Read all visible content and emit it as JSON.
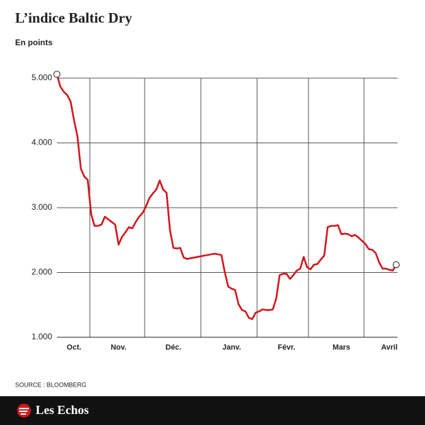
{
  "chart_data": {
    "type": "line",
    "title": "L’indice Baltic Dry",
    "subtitle": "En points",
    "source": "SOURCE : BLOOMBERG",
    "categories": [
      null,
      null,
      null,
      null,
      null,
      "Oct.",
      null,
      null,
      null,
      null,
      null,
      null,
      null,
      null,
      null,
      null,
      null,
      null,
      "Nov.",
      null,
      null,
      null,
      null,
      null,
      null,
      null,
      null,
      null,
      null,
      null,
      null,
      null,
      null,
      null,
      "Déc.",
      null,
      null,
      null,
      null,
      null,
      null,
      null,
      null,
      null,
      null,
      null,
      null,
      null,
      null,
      null,
      null,
      "Janv.",
      null,
      null,
      null,
      null,
      null,
      null,
      null,
      null,
      null,
      null,
      null,
      null,
      null,
      null,
      null,
      "Févr.",
      null,
      null,
      null,
      null,
      null,
      null,
      null,
      null,
      null,
      null,
      null,
      null,
      null,
      null,
      null,
      "Mars",
      null,
      null,
      null,
      null,
      null,
      null,
      null,
      null,
      null,
      null,
      null,
      null,
      null,
      "Avril",
      null,
      null
    ],
    "series": [
      {
        "color": "#d0191e",
        "values": [
          5060,
          4870,
          4790,
          4740,
          4640,
          4350,
          4100,
          3600,
          3480,
          3430,
          2900,
          2720,
          2720,
          2740,
          2860,
          2820,
          2780,
          2740,
          2430,
          2550,
          2620,
          2700,
          2680,
          2780,
          2860,
          2920,
          3020,
          3150,
          3220,
          3280,
          3420,
          3280,
          3230,
          2650,
          2380,
          2370,
          2380,
          2230,
          2210,
          2220,
          2230,
          2240,
          2250,
          2260,
          2270,
          2280,
          2290,
          2280,
          2270,
          2000,
          1780,
          1750,
          1730,
          1510,
          1420,
          1400,
          1300,
          1280,
          1380,
          1400,
          1430,
          1420,
          1420,
          1430,
          1600,
          1960,
          1980,
          1980,
          1900,
          1960,
          2030,
          2060,
          2240,
          2080,
          2050,
          2120,
          2130,
          2200,
          2260,
          2700,
          2720,
          2720,
          2730,
          2590,
          2600,
          2590,
          2560,
          2580,
          2540,
          2490,
          2440,
          2360,
          2350,
          2300,
          2160,
          2060,
          2060,
          2040,
          2030,
          2120
        ]
      }
    ],
    "ylim": [
      1000,
      5000
    ],
    "yticks": [
      {
        "value": 1000,
        "label": "1.000"
      },
      {
        "value": 2000,
        "label": "2.000"
      },
      {
        "value": 3000,
        "label": "3.000"
      },
      {
        "value": 4000,
        "label": "4.000"
      },
      {
        "value": 5000,
        "label": "5.000"
      }
    ],
    "grid": true
  },
  "brand": "Les Echos"
}
